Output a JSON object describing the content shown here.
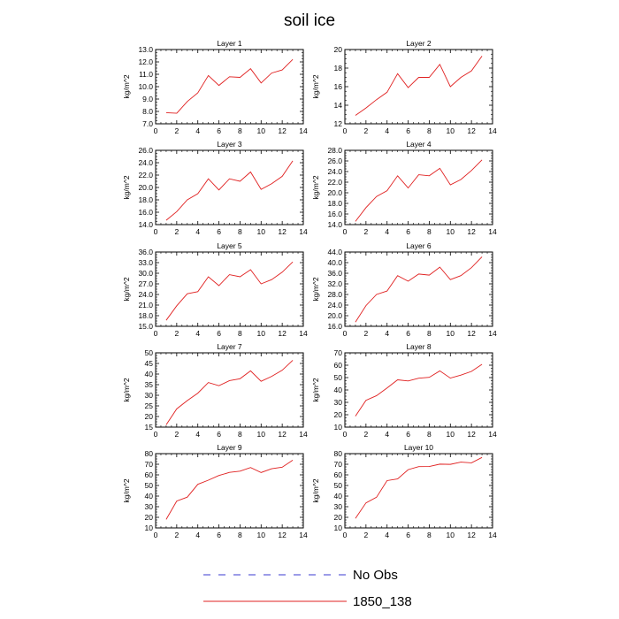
{
  "title": "soil ice",
  "legend": [
    {
      "label": "No Obs",
      "color": "#3a3ad0",
      "dash": "8,9"
    },
    {
      "label": "1850_138",
      "color": "#e02020",
      "dash": ""
    }
  ],
  "chart_data": [
    {
      "type": "line",
      "title": "Layer 1",
      "ylabel": "kg/m^2",
      "xlim": [
        0,
        14
      ],
      "xticks": [
        "0",
        "2",
        "4",
        "6",
        "8",
        "10",
        "12",
        "14"
      ],
      "ylim": [
        7.0,
        13.0
      ],
      "yticks": [
        "7.0",
        "8.0",
        "9.0",
        "10.0",
        "11.0",
        "12.0",
        "13.0"
      ],
      "series": [
        {
          "name": "1850_138",
          "x": [
            1,
            2,
            3,
            4,
            5,
            6,
            7,
            8,
            9,
            10,
            11,
            12,
            13
          ],
          "values": [
            7.9,
            7.85,
            8.8,
            9.5,
            10.9,
            10.1,
            10.8,
            10.75,
            11.45,
            10.3,
            11.1,
            11.35,
            12.2
          ]
        }
      ]
    },
    {
      "type": "line",
      "title": "Layer 2",
      "ylabel": "kg/m^2",
      "xlim": [
        0,
        14
      ],
      "xticks": [
        "0",
        "2",
        "4",
        "6",
        "8",
        "10",
        "12",
        "14"
      ],
      "ylim": [
        12,
        20
      ],
      "yticks": [
        "12",
        "14",
        "16",
        "18",
        "20"
      ],
      "series": [
        {
          "name": "1850_138",
          "x": [
            1,
            2,
            3,
            4,
            5,
            6,
            7,
            8,
            9,
            10,
            11,
            12,
            13
          ],
          "values": [
            12.9,
            13.7,
            14.6,
            15.4,
            17.4,
            15.9,
            17.0,
            17.0,
            18.4,
            16.0,
            17.0,
            17.7,
            19.3
          ]
        }
      ]
    },
    {
      "type": "line",
      "title": "Layer 3",
      "ylabel": "kg/m^2",
      "xlim": [
        0,
        14
      ],
      "xticks": [
        "0",
        "2",
        "4",
        "6",
        "8",
        "10",
        "12",
        "14"
      ],
      "ylim": [
        14.0,
        26.0
      ],
      "yticks": [
        "14.0",
        "16.0",
        "18.0",
        "20.0",
        "22.0",
        "24.0",
        "26.0"
      ],
      "series": [
        {
          "name": "1850_138",
          "x": [
            1,
            2,
            3,
            4,
            5,
            6,
            7,
            8,
            9,
            10,
            11,
            12,
            13
          ],
          "values": [
            14.7,
            16.1,
            18.0,
            19.0,
            21.4,
            19.6,
            21.4,
            21.0,
            22.5,
            19.7,
            20.6,
            21.8,
            24.3
          ]
        }
      ]
    },
    {
      "type": "line",
      "title": "Layer 4",
      "ylabel": "kg/m^2",
      "xlim": [
        0,
        14
      ],
      "xticks": [
        "0",
        "2",
        "4",
        "6",
        "8",
        "10",
        "12",
        "14"
      ],
      "ylim": [
        14.0,
        28.0
      ],
      "yticks": [
        "14.0",
        "16.0",
        "18.0",
        "20.0",
        "22.0",
        "24.0",
        "26.0",
        "28.0"
      ],
      "series": [
        {
          "name": "1850_138",
          "x": [
            1,
            2,
            3,
            4,
            5,
            6,
            7,
            8,
            9,
            10,
            11,
            12,
            13
          ],
          "values": [
            14.6,
            17.2,
            19.3,
            20.4,
            23.2,
            20.9,
            23.4,
            23.2,
            24.6,
            21.5,
            22.5,
            24.2,
            26.2
          ]
        }
      ]
    },
    {
      "type": "line",
      "title": "Layer 5",
      "ylabel": "kg/m^2",
      "xlim": [
        0,
        14
      ],
      "xticks": [
        "0",
        "2",
        "4",
        "6",
        "8",
        "10",
        "12",
        "14"
      ],
      "ylim": [
        15.0,
        36.0
      ],
      "yticks": [
        "15.0",
        "18.0",
        "21.0",
        "24.0",
        "27.0",
        "30.0",
        "33.0",
        "36.0"
      ],
      "series": [
        {
          "name": "1850_138",
          "x": [
            1,
            2,
            3,
            4,
            5,
            6,
            7,
            8,
            9,
            10,
            11,
            12,
            13
          ],
          "values": [
            16.7,
            20.8,
            24.2,
            24.8,
            29.0,
            26.5,
            29.6,
            29.0,
            31.0,
            27.0,
            28.2,
            30.3,
            33.2
          ]
        }
      ]
    },
    {
      "type": "line",
      "title": "Layer 6",
      "ylabel": "kg/m^2",
      "xlim": [
        0,
        14
      ],
      "xticks": [
        "0",
        "2",
        "4",
        "6",
        "8",
        "10",
        "12",
        "14"
      ],
      "ylim": [
        16.0,
        44.0
      ],
      "yticks": [
        "16.0",
        "20.0",
        "24.0",
        "28.0",
        "32.0",
        "36.0",
        "40.0",
        "44.0"
      ],
      "series": [
        {
          "name": "1850_138",
          "x": [
            1,
            2,
            3,
            4,
            5,
            6,
            7,
            8,
            9,
            10,
            11,
            12,
            13
          ],
          "values": [
            17.6,
            23.8,
            28.0,
            29.3,
            35.1,
            33.0,
            35.7,
            35.3,
            38.3,
            33.6,
            35.1,
            38.1,
            42.2
          ]
        }
      ]
    },
    {
      "type": "line",
      "title": "Layer 7",
      "ylabel": "kg/m^2",
      "xlim": [
        0,
        14
      ],
      "xticks": [
        "0",
        "2",
        "4",
        "6",
        "8",
        "10",
        "12",
        "14"
      ],
      "ylim": [
        15,
        50
      ],
      "yticks": [
        "15",
        "20",
        "25",
        "30",
        "35",
        "40",
        "45",
        "50"
      ],
      "series": [
        {
          "name": "1850_138",
          "x": [
            1,
            2,
            3,
            4,
            5,
            6,
            7,
            8,
            9,
            10,
            11,
            12,
            13
          ],
          "values": [
            16.1,
            23.6,
            27.5,
            31.0,
            36.0,
            34.5,
            36.9,
            37.8,
            41.5,
            36.6,
            38.9,
            41.8,
            46.5
          ]
        }
      ]
    },
    {
      "type": "line",
      "title": "Layer 8",
      "ylabel": "kg/m^2",
      "xlim": [
        0,
        14
      ],
      "xticks": [
        "0",
        "2",
        "4",
        "6",
        "8",
        "10",
        "12",
        "14"
      ],
      "ylim": [
        10,
        70
      ],
      "yticks": [
        "10",
        "20",
        "30",
        "40",
        "50",
        "60",
        "70"
      ],
      "series": [
        {
          "name": "1850_138",
          "x": [
            1,
            2,
            3,
            4,
            5,
            6,
            7,
            8,
            9,
            10,
            11,
            12,
            13
          ],
          "values": [
            18.8,
            31.6,
            35.4,
            41.6,
            48.2,
            47.3,
            49.5,
            50.2,
            55.4,
            49.6,
            52.0,
            55.0,
            60.7
          ]
        }
      ]
    },
    {
      "type": "line",
      "title": "Layer 9",
      "ylabel": "kg/m^2",
      "xlim": [
        0,
        14
      ],
      "xticks": [
        "0",
        "2",
        "4",
        "6",
        "8",
        "10",
        "12",
        "14"
      ],
      "ylim": [
        10,
        80
      ],
      "yticks": [
        "10",
        "20",
        "30",
        "40",
        "50",
        "60",
        "70",
        "80"
      ],
      "series": [
        {
          "name": "1850_138",
          "x": [
            1,
            2,
            3,
            4,
            5,
            6,
            7,
            8,
            9,
            10,
            11,
            12,
            13
          ],
          "values": [
            18.0,
            35.3,
            39.0,
            51.1,
            55.0,
            59.4,
            62.3,
            63.5,
            66.9,
            62.2,
            65.8,
            67.2,
            73.9
          ]
        }
      ]
    },
    {
      "type": "line",
      "title": "Layer 10",
      "ylabel": "kg/m^2",
      "xlim": [
        0,
        14
      ],
      "xticks": [
        "0",
        "2",
        "4",
        "6",
        "8",
        "10",
        "12",
        "14"
      ],
      "ylim": [
        10,
        80
      ],
      "yticks": [
        "10",
        "20",
        "30",
        "40",
        "50",
        "60",
        "70",
        "80"
      ],
      "series": [
        {
          "name": "1850_138",
          "x": [
            1,
            2,
            3,
            4,
            5,
            6,
            7,
            8,
            9,
            10,
            11,
            12,
            13
          ],
          "values": [
            19.0,
            33.6,
            38.9,
            54.6,
            56.2,
            64.9,
            67.8,
            67.9,
            70.1,
            69.9,
            72.0,
            71.3,
            76.4
          ]
        }
      ]
    }
  ]
}
